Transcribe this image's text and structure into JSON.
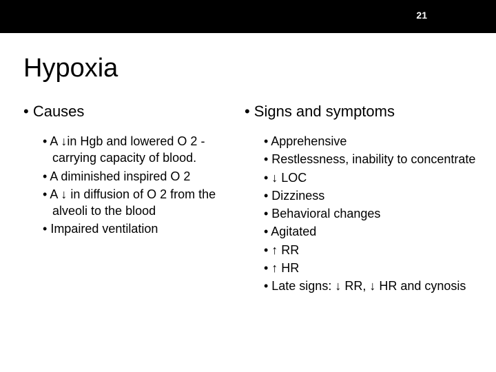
{
  "pageNumber": "21",
  "title": "Hypoxia",
  "colors": {
    "headerBg": "#000000",
    "pageNumColor": "#ffffff",
    "bodyBg": "#ffffff",
    "text": "#000000"
  },
  "typography": {
    "titleSize": 38,
    "headingSize": 22,
    "bodySize": 18
  },
  "leftColumn": {
    "heading": "Causes",
    "items": [
      "A ↓in Hgb and lowered O 2 -carrying capacity of blood.",
      "A diminished inspired O 2",
      "A ↓ in diffusion of O 2 from the alveoli to the blood",
      "Impaired ventilation"
    ]
  },
  "rightColumn": {
    "heading": "Signs and symptoms",
    "items": [
      "Apprehensive",
      "Restlessness, inability to concentrate",
      "↓ LOC",
      "Dizziness",
      "Behavioral changes",
      "Agitated",
      "↑ RR",
      "↑ HR",
      "Late signs: ↓ RR, ↓ HR and cynosis"
    ]
  }
}
